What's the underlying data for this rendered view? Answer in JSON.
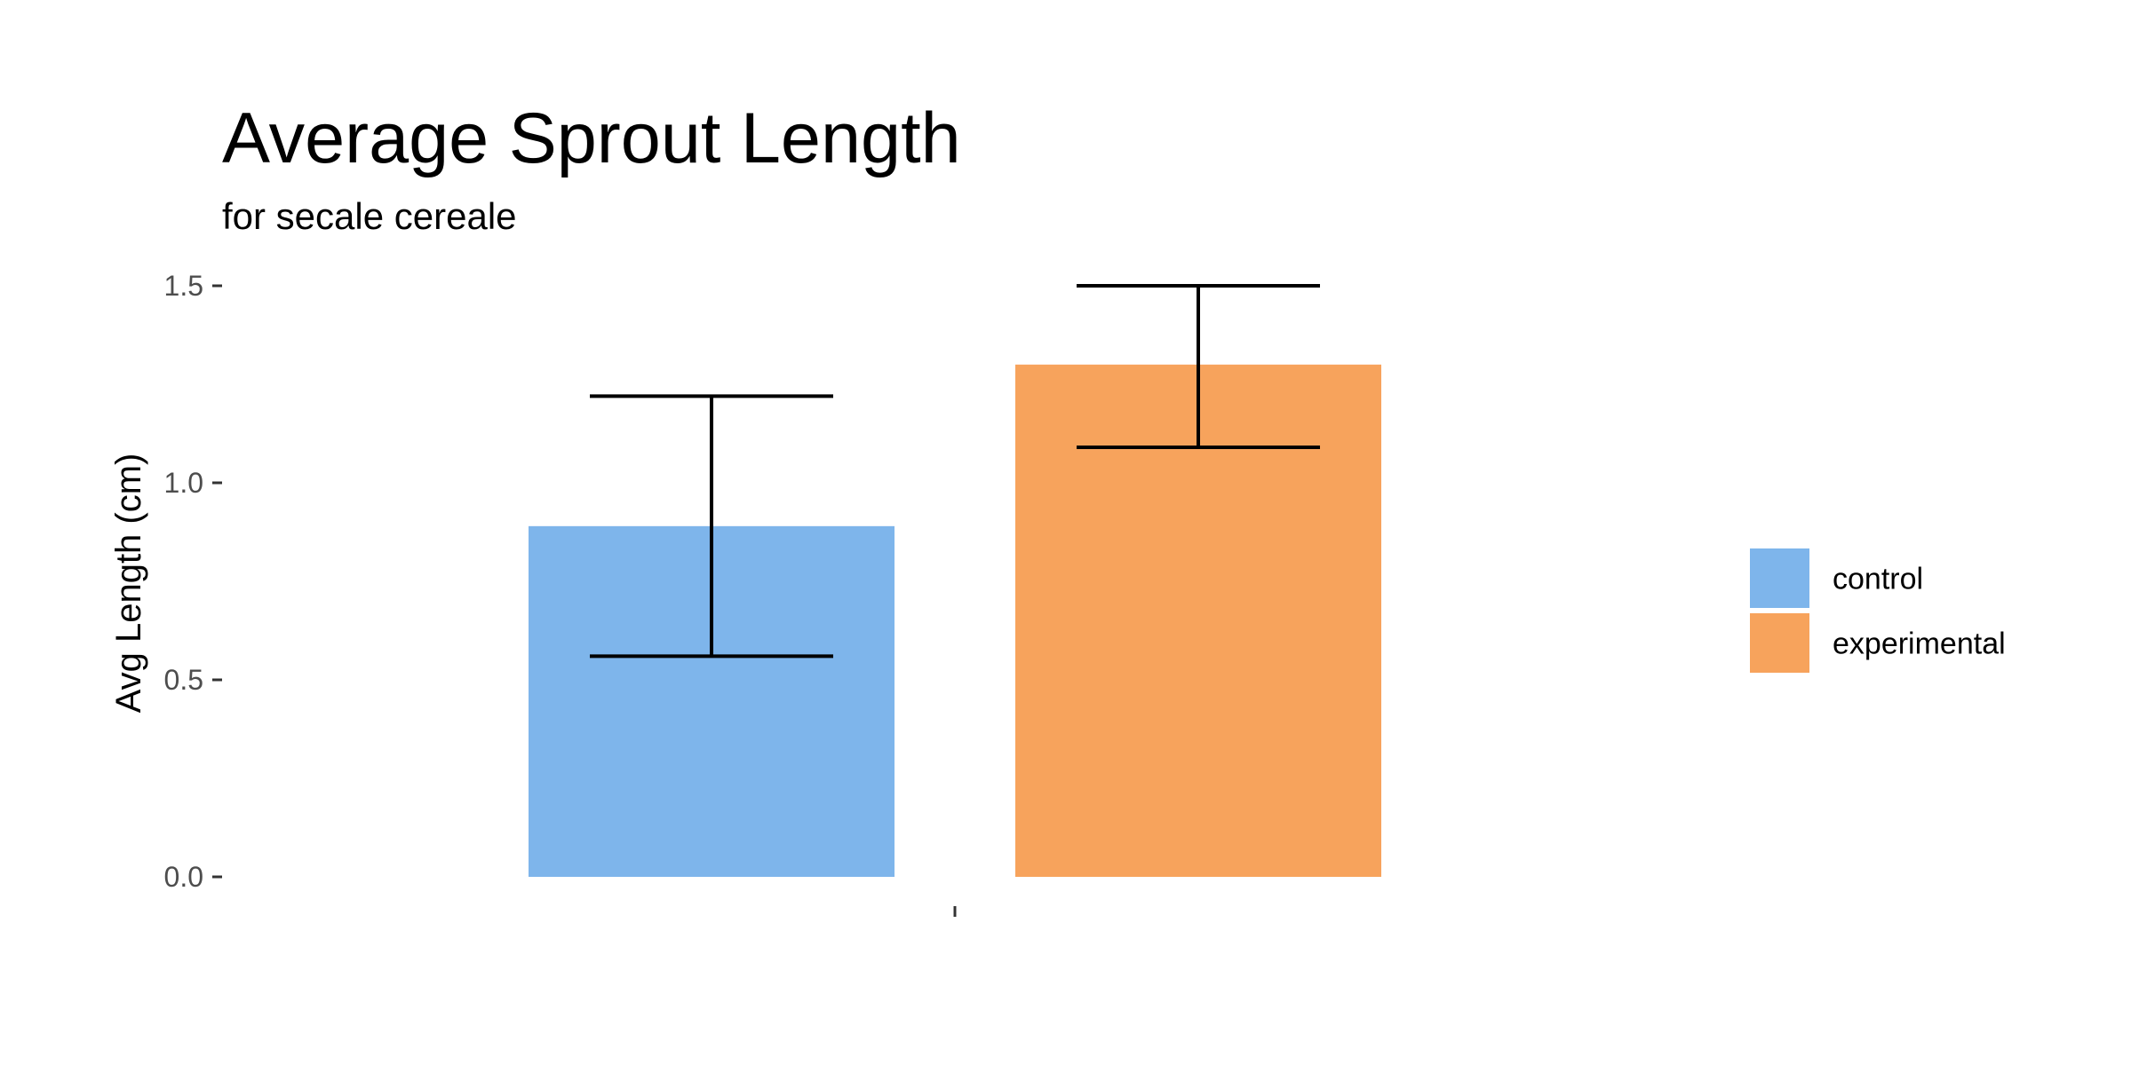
{
  "chart_data": {
    "type": "bar",
    "title": "Average Sprout Length",
    "subtitle": "for  secale cereale",
    "xlabel": "",
    "ylabel": "Avg Length (cm)",
    "categories": [
      ""
    ],
    "ylim": [
      0,
      1.5
    ],
    "yticks": [
      0.0,
      0.5,
      1.0,
      1.5
    ],
    "ytick_labels": [
      "0.0",
      "0.5",
      "1.0",
      "1.5"
    ],
    "grid": false,
    "legend_position": "right",
    "series": [
      {
        "name": "control",
        "color": "#7EB5EB",
        "values": [
          0.89
        ],
        "error_low": [
          0.56
        ],
        "error_high": [
          1.22
        ]
      },
      {
        "name": "experimental",
        "color": "#F7A35C",
        "values": [
          1.3
        ],
        "error_low": [
          1.09
        ],
        "error_high": [
          1.5
        ]
      }
    ]
  }
}
